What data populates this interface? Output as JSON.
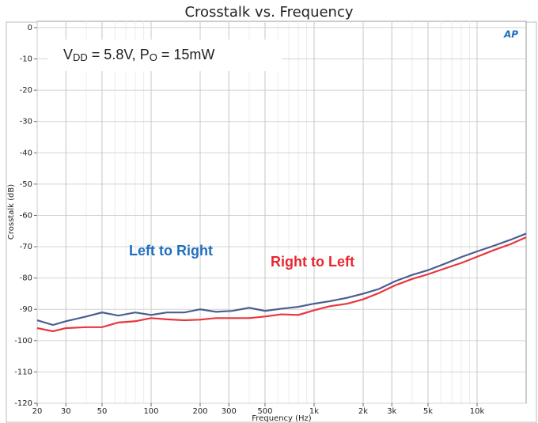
{
  "chart_data": {
    "type": "line",
    "title": "Crosstalk vs. Frequency",
    "annotation": [
      {
        "text": "V"
      },
      {
        "text": "DD",
        "sub": true
      },
      {
        "text": " = 5.8V, P"
      },
      {
        "text": "O",
        "sub": true
      },
      {
        "text": " = 15mW"
      }
    ],
    "logo": "AP",
    "x_label": "Frequency (Hz)",
    "y_label": "Crosstalk (dB)",
    "x": [
      20,
      25,
      30,
      40,
      50,
      63,
      80,
      100,
      125,
      160,
      200,
      250,
      315,
      400,
      500,
      630,
      800,
      1000,
      1250,
      1600,
      2000,
      2500,
      3150,
      4000,
      5000,
      6300,
      8000,
      10000,
      12500,
      16000,
      20000
    ],
    "series": [
      {
        "name": "Left to Right",
        "color": "#4a5f8f",
        "label_color": "#1f6fbf",
        "values": [
          -93.5,
          -95,
          -93.8,
          -92.3,
          -91,
          -92,
          -91,
          -91.8,
          -91,
          -91,
          -90,
          -90.8,
          -90.5,
          -89.5,
          -90.5,
          -89.8,
          -89.2,
          -88.2,
          -87.4,
          -86.3,
          -85,
          -83.5,
          -81,
          -79,
          -77.5,
          -75.5,
          -73.3,
          -71.5,
          -69.8,
          -67.8,
          -65.8
        ]
      },
      {
        "name": "Right to Left",
        "color": "#e8363f",
        "label_color": "#e8262f",
        "values": [
          -96,
          -97,
          -96,
          -95.7,
          -95.7,
          -94.2,
          -93.8,
          -92.8,
          -93.2,
          -93.5,
          -93.3,
          -92.8,
          -92.8,
          -92.8,
          -92.3,
          -91.6,
          -91.8,
          -90.3,
          -89,
          -88.2,
          -86.8,
          -84.8,
          -82.3,
          -80.3,
          -78.8,
          -77,
          -75.2,
          -73.2,
          -71.2,
          -69.2,
          -67
        ]
      }
    ],
    "xlog": true,
    "xlim": [
      20,
      20000
    ],
    "xticks": [
      20,
      30,
      50,
      100,
      200,
      300,
      500,
      {
        "value": 1000,
        "label": "1k"
      },
      {
        "value": 2000,
        "label": "2k"
      },
      {
        "value": 3000,
        "label": "3k"
      },
      {
        "value": 5000,
        "label": "5k"
      },
      {
        "value": 10000,
        "label": "10k"
      }
    ],
    "ylim": [
      -120,
      2
    ],
    "yticks": [
      0,
      -10,
      -20,
      -30,
      -40,
      -50,
      -60,
      -70,
      -80,
      -90,
      -100,
      -110,
      -120
    ],
    "grid": true
  }
}
